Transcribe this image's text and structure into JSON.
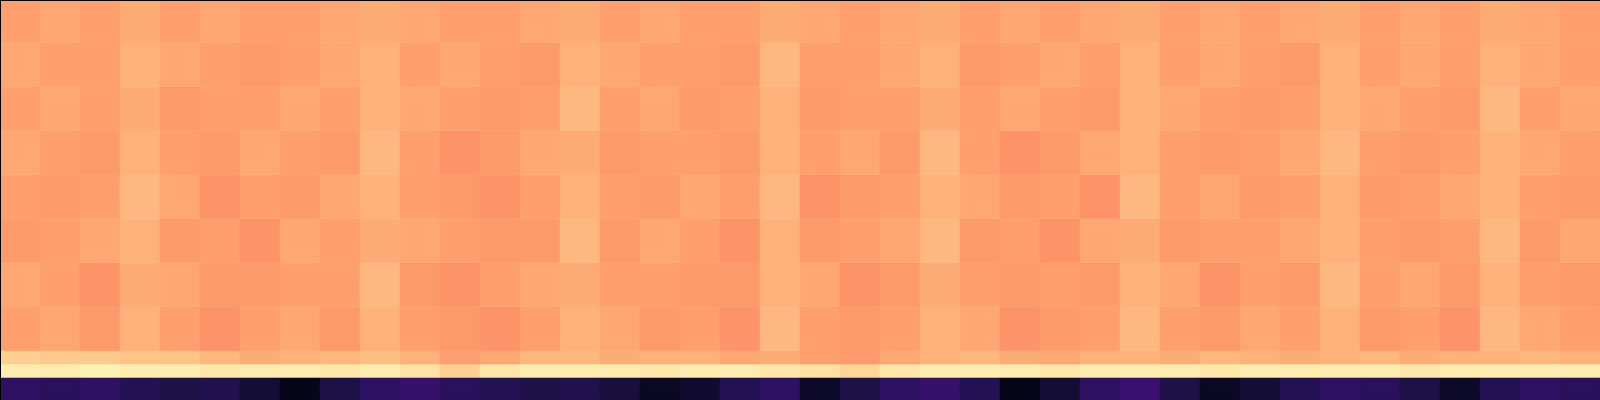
{
  "chart_data": {
    "type": "heatmap",
    "color": "magma",
    "tick_labels": false,
    "xlim": [
      0,
      40
    ],
    "ylim": [
      0,
      30
    ],
    "zlim": [
      -80,
      0
    ],
    "x_edges": [
      0,
      1,
      2,
      3,
      4,
      5,
      6,
      7,
      8,
      9,
      10,
      11,
      12,
      13,
      14,
      15,
      16,
      17,
      18,
      19,
      20,
      21,
      22,
      23,
      24,
      25,
      26,
      27,
      28,
      29,
      30,
      31,
      32,
      33,
      34,
      35,
      36,
      37,
      38,
      39,
      40
    ],
    "y_edges": [
      0,
      1.7,
      2.7,
      3.7,
      7,
      10.3,
      13.6,
      16.9,
      20.2,
      23.5,
      26.8,
      30
    ],
    "cells": [
      [
        -66,
        -67,
        -66,
        -68,
        -70,
        -69,
        -72,
        -76,
        -70,
        -66,
        -65,
        -67,
        -68,
        -70,
        -69,
        -71,
        -75,
        -73,
        -68,
        -66,
        -74,
        -70,
        -66,
        -65,
        -68,
        -76,
        -72,
        -66,
        -64,
        -70,
        -75,
        -72,
        -68,
        -66,
        -67,
        -70,
        -74,
        -68,
        -66,
        -67
      ],
      [
        -3,
        -3,
        -2,
        -3,
        -3,
        -4,
        -3,
        -3,
        -4,
        -3,
        -5,
        -8,
        -4,
        -3,
        -3,
        -3,
        -4,
        -3,
        -3,
        -4,
        -5,
        -7,
        -4,
        -3,
        -3,
        -3,
        -4,
        -3,
        -3,
        -3,
        -4,
        -3,
        -3,
        -3,
        -3,
        -4,
        -3,
        -3,
        -3,
        -3
      ],
      [
        -8,
        -9,
        -9,
        -10,
        -10,
        -12,
        -14,
        -13,
        -12,
        -11,
        -13,
        -16,
        -15,
        -12,
        -12,
        -14,
        -13,
        -13,
        -15,
        -14,
        -16,
        -17,
        -15,
        -13,
        -12,
        -14,
        -15,
        -13,
        -13,
        -14,
        -12,
        -13,
        -14,
        -13,
        -12,
        -14,
        -13,
        -13,
        -12,
        -13
      ],
      [
        -16,
        -15,
        -17,
        -13,
        -16,
        -18,
        -16,
        -15,
        -17,
        -13,
        -16,
        -17,
        -18,
        -16,
        -13,
        -15,
        -17,
        -16,
        -18,
        -12,
        -16,
        -17,
        -16,
        -13,
        -15,
        -18,
        -17,
        -16,
        -12,
        -16,
        -17,
        -15,
        -16,
        -13,
        -17,
        -16,
        -18,
        -12,
        -15,
        -16
      ],
      [
        -15,
        -16,
        -18,
        -14,
        -15,
        -17,
        -17,
        -16,
        -16,
        -12,
        -17,
        -18,
        -16,
        -15,
        -14,
        -16,
        -16,
        -17,
        -17,
        -13,
        -15,
        -18,
        -17,
        -14,
        -16,
        -17,
        -16,
        -17,
        -13,
        -15,
        -18,
        -16,
        -17,
        -12,
        -16,
        -15,
        -17,
        -13,
        -16,
        -17
      ],
      [
        -17,
        -16,
        -15,
        -13,
        -17,
        -16,
        -18,
        -15,
        -16,
        -14,
        -15,
        -16,
        -17,
        -17,
        -12,
        -17,
        -15,
        -16,
        -18,
        -13,
        -17,
        -16,
        -15,
        -12,
        -17,
        -16,
        -18,
        -15,
        -14,
        -17,
        -16,
        -16,
        -15,
        -13,
        -16,
        -17,
        -16,
        -12,
        -17,
        -15
      ],
      [
        -16,
        -17,
        -16,
        -12,
        -15,
        -18,
        -16,
        -17,
        -15,
        -13,
        -16,
        -17,
        -18,
        -16,
        -13,
        -16,
        -17,
        -15,
        -16,
        -12,
        -18,
        -17,
        -16,
        -13,
        -15,
        -17,
        -16,
        -18,
        -12,
        -16,
        -15,
        -17,
        -16,
        -13,
        -17,
        -16,
        -15,
        -13,
        -16,
        -17
      ],
      [
        -15,
        -16,
        -17,
        -13,
        -16,
        -17,
        -15,
        -16,
        -17,
        -12,
        -16,
        -18,
        -17,
        -15,
        -14,
        -17,
        -16,
        -16,
        -17,
        -13,
        -16,
        -15,
        -17,
        -12,
        -16,
        -18,
        -17,
        -15,
        -13,
        -16,
        -17,
        -16,
        -15,
        -12,
        -16,
        -17,
        -16,
        -13,
        -15,
        -16
      ],
      [
        -16,
        -15,
        -16,
        -14,
        -17,
        -16,
        -16,
        -15,
        -16,
        -13,
        -15,
        -16,
        -17,
        -16,
        -12,
        -16,
        -15,
        -17,
        -16,
        -13,
        -17,
        -16,
        -16,
        -14,
        -16,
        -15,
        -16,
        -17,
        -13,
        -15,
        -16,
        -17,
        -16,
        -13,
        -15,
        -16,
        -17,
        -12,
        -16,
        -15
      ],
      [
        -15,
        -16,
        -16,
        -13,
        -15,
        -16,
        -17,
        -16,
        -15,
        -13,
        -16,
        -15,
        -16,
        -17,
        -13,
        -15,
        -16,
        -16,
        -17,
        -12,
        -16,
        -16,
        -15,
        -13,
        -17,
        -16,
        -15,
        -16,
        -13,
        -16,
        -15,
        -16,
        -17,
        -13,
        -16,
        -15,
        -16,
        -13,
        -15,
        -16
      ],
      [
        -16,
        -15,
        -16,
        -14,
        -16,
        -15,
        -16,
        -16,
        -15,
        -14,
        -15,
        -16,
        -16,
        -15,
        -14,
        -16,
        -15,
        -16,
        -16,
        -14,
        -15,
        -16,
        -15,
        -14,
        -16,
        -15,
        -16,
        -15,
        -14,
        -16,
        -15,
        -16,
        -15,
        -14,
        -16,
        -15,
        -16,
        -14,
        -15,
        -16
      ]
    ]
  }
}
